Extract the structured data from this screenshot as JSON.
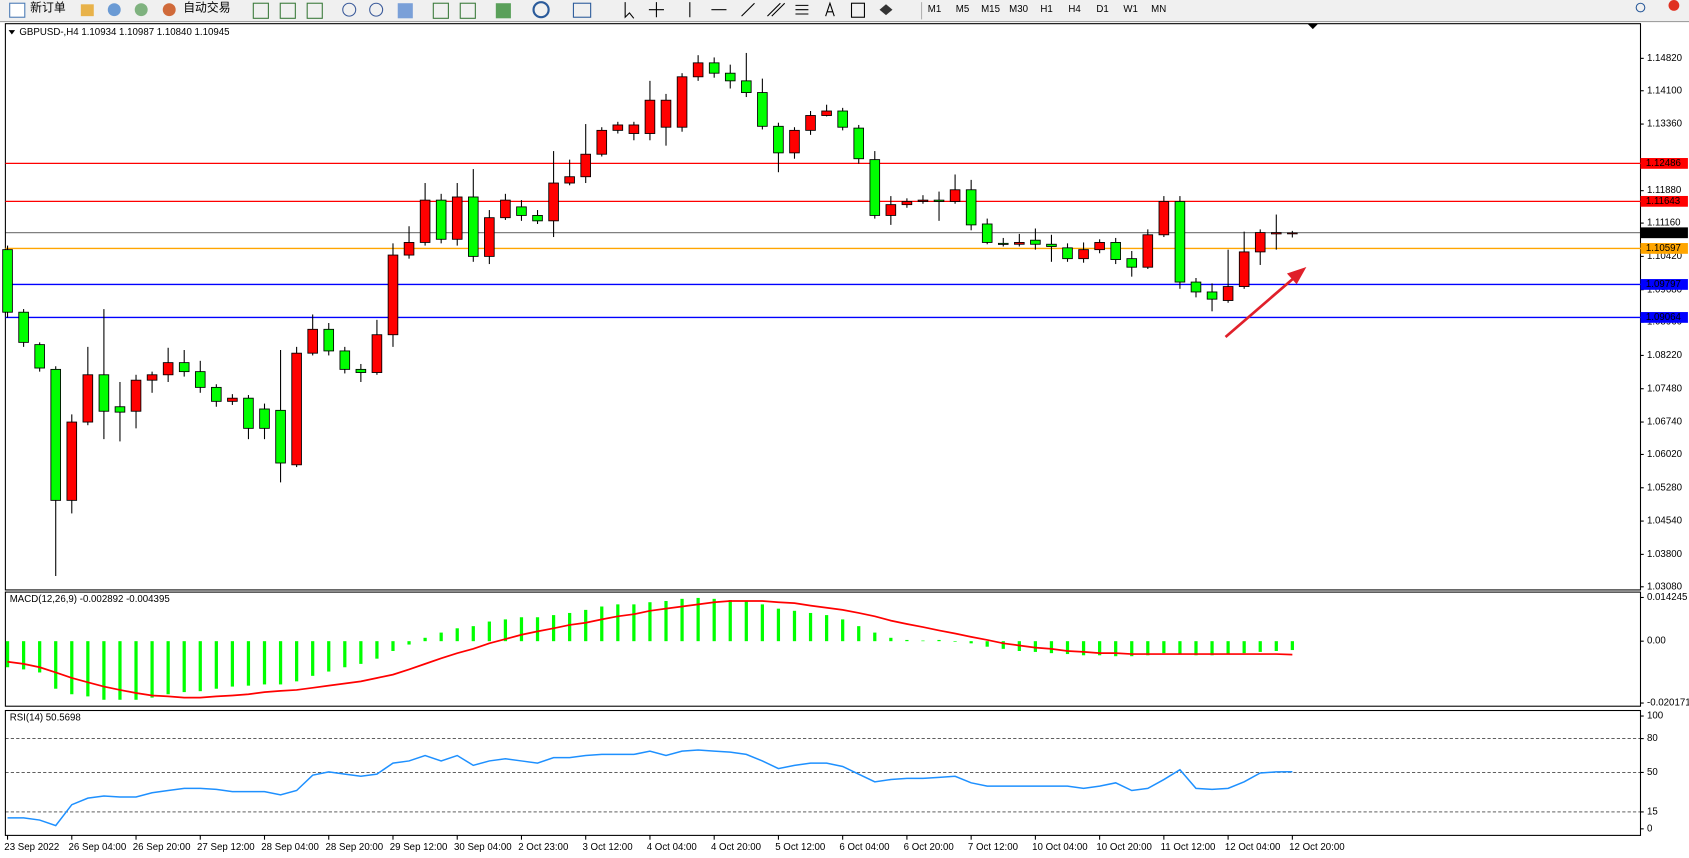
{
  "toolbar": {
    "new_order": "新订单",
    "auto_trading": "自动交易",
    "timeframes": [
      "M1",
      "M5",
      "M15",
      "M30",
      "H1",
      "H4",
      "D1",
      "W1",
      "MN"
    ]
  },
  "chart_data": [
    {
      "type": "candlestick",
      "title": "GBPUSD-,H4  1.10934 1.10987 1.10840 1.10945",
      "x": [
        "23 Sep 2022",
        null,
        null,
        null,
        "26 Sep 04:00",
        null,
        null,
        null,
        "26 Sep 20:00",
        null,
        null,
        null,
        "27 Sep 12:00",
        null,
        null,
        null,
        "28 Sep 04:00",
        null,
        null,
        null,
        "28 Sep 20:00",
        null,
        null,
        null,
        "29 Sep 12:00",
        null,
        null,
        null,
        "30 Sep 04:00",
        null,
        null,
        null,
        "2 Oct 23:00",
        null,
        null,
        null,
        "3 Oct 12:00",
        null,
        null,
        null,
        "4 Oct 04:00",
        null,
        null,
        null,
        "4 Oct 20:00",
        null,
        null,
        null,
        "5 Oct 12:00",
        null,
        null,
        null,
        "6 Oct 04:00",
        null,
        null,
        null,
        "6 Oct 20:00",
        null,
        null,
        null,
        "7 Oct 12:00",
        null,
        null,
        null,
        "10 Oct 04:00",
        null,
        null,
        null,
        "10 Oct 20:00",
        null,
        null,
        null,
        "11 Oct 12:00",
        null,
        null,
        null,
        "12 Oct 04:00",
        null,
        null,
        null,
        "12 Oct 20:00"
      ],
      "open": [
        1.1057,
        1.0918,
        1.0846,
        1.0791,
        1.05,
        1.0674,
        1.0779,
        1.0708,
        1.0698,
        1.0767,
        1.0779,
        1.0806,
        1.0786,
        1.0751,
        1.072,
        1.0727,
        1.0703,
        1.07,
        1.0579,
        1.0827,
        1.088,
        1.0832,
        1.0791,
        1.0784,
        1.0868,
        1.1045,
        1.1073,
        1.1167,
        1.108,
        1.1174,
        1.1042,
        1.1128,
        1.1152,
        1.1133,
        1.1121,
        1.1205,
        1.1219,
        1.1269,
        1.1322,
        1.1315,
        1.1315,
        1.1329,
        1.1329,
        1.1441,
        1.1472,
        1.1449,
        1.1432,
        1.1406,
        1.1331,
        1.1272,
        1.1322,
        1.1355,
        1.1365,
        1.1327,
        1.1257,
        1.1133,
        1.1157,
        1.1164,
        1.1167,
        1.1164,
        1.119,
        1.1114,
        1.1071,
        1.1069,
        1.1078,
        1.1069,
        1.1061,
        1.1037,
        1.1057,
        1.1073,
        1.1037,
        1.1018,
        1.109,
        1.1164,
        1.0985,
        1.0963,
        1.0944,
        1.0975,
        1.1052,
        1.1092,
        1.10934
      ],
      "high": [
        1.1066,
        1.0925,
        1.0851,
        1.0798,
        1.0691,
        1.0841,
        1.0925,
        1.0763,
        1.0779,
        1.0786,
        1.0839,
        1.0834,
        1.081,
        1.0758,
        1.0736,
        1.0734,
        1.0715,
        1.0834,
        1.0841,
        1.0913,
        1.0894,
        1.0841,
        1.0803,
        1.0901,
        1.1071,
        1.1109,
        1.1205,
        1.1181,
        1.1205,
        1.1236,
        1.1145,
        1.1181,
        1.1167,
        1.1145,
        1.1276,
        1.1257,
        1.1336,
        1.1329,
        1.1341,
        1.1341,
        1.1432,
        1.1403,
        1.1449,
        1.1489,
        1.1484,
        1.1468,
        1.1494,
        1.1437,
        1.1339,
        1.1329,
        1.1365,
        1.1379,
        1.1372,
        1.1334,
        1.1276,
        1.1176,
        1.1171,
        1.1178,
        1.1186,
        1.1224,
        1.1212,
        1.1126,
        1.1083,
        1.1092,
        1.1104,
        1.109,
        1.1071,
        1.1073,
        1.108,
        1.1083,
        1.1054,
        1.1102,
        1.1176,
        1.1176,
        1.0994,
        1.0982,
        1.1057,
        1.1097,
        1.1102,
        1.1135,
        1.10987
      ],
      "low": [
        1.0906,
        1.0841,
        1.0786,
        1.0332,
        1.0471,
        1.0667,
        1.0636,
        1.0631,
        1.066,
        1.0739,
        1.0763,
        1.0775,
        1.0739,
        1.0708,
        1.0712,
        1.0636,
        1.0636,
        1.054,
        1.0574,
        1.0822,
        1.0822,
        1.0782,
        1.0763,
        1.0779,
        1.0841,
        1.1037,
        1.1066,
        1.1071,
        1.1066,
        1.103,
        1.1025,
        1.1123,
        1.1121,
        1.1114,
        1.1085,
        1.12,
        1.1205,
        1.1264,
        1.1315,
        1.13,
        1.13,
        1.1288,
        1.1319,
        1.1432,
        1.1439,
        1.1415,
        1.1396,
        1.1324,
        1.1229,
        1.1259,
        1.1312,
        1.1353,
        1.1322,
        1.1248,
        1.1126,
        1.1112,
        1.115,
        1.1159,
        1.1121,
        1.1159,
        1.11,
        1.1069,
        1.1064,
        1.1064,
        1.1057,
        1.103,
        1.103,
        1.1028,
        1.1049,
        1.1025,
        1.0997,
        1.1014,
        1.1085,
        1.097,
        1.0951,
        1.092,
        1.0939,
        1.097,
        1.1023,
        1.1057,
        1.1084
      ],
      "close": [
        1.0918,
        1.0851,
        1.0794,
        1.05,
        1.0674,
        1.0779,
        1.0698,
        1.0696,
        1.0767,
        1.0779,
        1.0806,
        1.0786,
        1.0751,
        1.072,
        1.0727,
        1.066,
        1.066,
        1.0583,
        1.0827,
        1.088,
        1.0832,
        1.0791,
        1.0784,
        1.0868,
        1.1045,
        1.1073,
        1.1167,
        1.108,
        1.1174,
        1.1042,
        1.1128,
        1.1167,
        1.1133,
        1.1121,
        1.1205,
        1.1219,
        1.1269,
        1.1322,
        1.1334,
        1.1334,
        1.1389,
        1.1389,
        1.1441,
        1.1472,
        1.1449,
        1.1432,
        1.1406,
        1.1331,
        1.1272,
        1.1322,
        1.1355,
        1.1365,
        1.1329,
        1.1259,
        1.1133,
        1.1157,
        1.1164,
        1.1167,
        1.1164,
        1.119,
        1.1112,
        1.1073,
        1.1069,
        1.1073,
        1.1069,
        1.1064,
        1.1037,
        1.1057,
        1.1073,
        1.1035,
        1.1018,
        1.109,
        1.1164,
        1.0985,
        1.0963,
        1.0947,
        1.0975,
        1.1052,
        1.1095,
        1.1095,
        1.10945
      ],
      "up_color": "#ff0000",
      "down_color": "#00ff00",
      "last_price_color": "#000000",
      "ylim": [
        1.0301,
        1.1559
      ],
      "yticks": [
        {
          "value": 1.1482,
          "label": "1.14820"
        },
        {
          "value": 1.141,
          "label": "1.14100"
        },
        {
          "value": 1.1336,
          "label": "1.13360"
        },
        {
          "value": 1.1188,
          "label": "1.11880"
        },
        {
          "value": 1.1116,
          "label": "1.11160"
        },
        {
          "value": 1.1042,
          "label": "1.10420"
        },
        {
          "value": 1.0968,
          "label": "1.09680"
        },
        {
          "value": 1.0896,
          "label": "1.08960"
        },
        {
          "value": 1.0822,
          "label": "1.08220"
        },
        {
          "value": 1.0748,
          "label": "1.07480"
        },
        {
          "value": 1.0674,
          "label": "1.06740"
        },
        {
          "value": 1.0602,
          "label": "1.06020"
        },
        {
          "value": 1.0528,
          "label": "1.05280"
        },
        {
          "value": 1.0454,
          "label": "1.04540"
        },
        {
          "value": 1.038,
          "label": "1.03800"
        },
        {
          "value": 1.0308,
          "label": "1.03080"
        }
      ],
      "levels": [
        {
          "value": 1.12486,
          "color": "#ff0000"
        },
        {
          "value": 1.11643,
          "color": "#ff0000"
        },
        {
          "value": 1.10597,
          "color": "#ffa500"
        },
        {
          "value": 1.09797,
          "color": "#0000ff"
        },
        {
          "value": 1.09064,
          "color": "#0000ff"
        }
      ]
    },
    {
      "type": "macd",
      "title": "MACD(12,26,9) -0.002892 -0.004395",
      "series": [
        {
          "type": "bar",
          "color": "#00ff00",
          "values": [
            -0.0085,
            -0.0092,
            -0.0102,
            -0.0155,
            -0.0173,
            -0.018,
            -0.0191,
            -0.0191,
            -0.0191,
            -0.0184,
            -0.0173,
            -0.0166,
            -0.0163,
            -0.0155,
            -0.0148,
            -0.0145,
            -0.0141,
            -0.0141,
            -0.0131,
            -0.0113,
            -0.0099,
            -0.0085,
            -0.0074,
            -0.0057,
            -0.0032,
            -0.0011,
            0.0011,
            0.0028,
            0.0042,
            0.0049,
            0.0064,
            0.0071,
            0.0078,
            0.0078,
            0.0085,
            0.0092,
            0.0102,
            0.0113,
            0.012,
            0.012,
            0.0127,
            0.0131,
            0.0138,
            0.0141,
            0.0138,
            0.0134,
            0.0131,
            0.012,
            0.0106,
            0.0099,
            0.0092,
            0.0085,
            0.0071,
            0.0049,
            0.0028,
            0.0011,
            0.0004,
            0.0002,
            0.0004,
            -0.0002,
            -0.0007,
            -0.0018,
            -0.0025,
            -0.0032,
            -0.0035,
            -0.0039,
            -0.0042,
            -0.0046,
            -0.0046,
            -0.0049,
            -0.0049,
            -0.0046,
            -0.0039,
            -0.0042,
            -0.0046,
            -0.0046,
            -0.0042,
            -0.0039,
            -0.0035,
            -0.0032,
            -0.002892
          ]
        },
        {
          "type": "line",
          "color": "#ff0000",
          "values": [
            -0.0067,
            -0.0074,
            -0.0085,
            -0.0102,
            -0.012,
            -0.0134,
            -0.0148,
            -0.0159,
            -0.0169,
            -0.0177,
            -0.018,
            -0.0184,
            -0.0184,
            -0.018,
            -0.0177,
            -0.0173,
            -0.0166,
            -0.0162,
            -0.0159,
            -0.0152,
            -0.0145,
            -0.0138,
            -0.0131,
            -0.012,
            -0.0109,
            -0.0092,
            -0.0074,
            -0.0056,
            -0.0039,
            -0.0025,
            -0.0007,
            0.0007,
            0.0021,
            0.0032,
            0.0042,
            0.0053,
            0.006,
            0.0071,
            0.0081,
            0.0088,
            0.0099,
            0.0106,
            0.0113,
            0.012,
            0.0127,
            0.0131,
            0.0131,
            0.0131,
            0.0127,
            0.0124,
            0.0116,
            0.0109,
            0.0102,
            0.0092,
            0.0081,
            0.0067,
            0.0056,
            0.0046,
            0.0035,
            0.0025,
            0.0014,
            0.0004,
            -0.0007,
            -0.0014,
            -0.0021,
            -0.0025,
            -0.0032,
            -0.0035,
            -0.0039,
            -0.0039,
            -0.0042,
            -0.0042,
            -0.0042,
            -0.0042,
            -0.0042,
            -0.0042,
            -0.0042,
            -0.0042,
            -0.0042,
            -0.0042,
            -0.004395
          ]
        }
      ],
      "ylim": [
        -0.0212,
        0.016
      ],
      "yticks": [
        0.014245,
        {
          "value": 0,
          "label": "0.00"
        },
        -0.020171
      ]
    },
    {
      "type": "rsi",
      "title": "RSI(14) 50.5698",
      "color": "#1e90ff",
      "values": [
        9.7,
        9.7,
        7.8,
        2.9,
        21.4,
        27.2,
        29.1,
        28.2,
        28.2,
        32.0,
        34.0,
        35.9,
        35.9,
        35.0,
        33.0,
        33.0,
        33.0,
        30.1,
        34.0,
        47.6,
        50.5,
        48.5,
        46.6,
        48.5,
        58.3,
        60.2,
        65.0,
        60.2,
        65.0,
        56.3,
        60.2,
        62.1,
        60.2,
        58.3,
        63.1,
        63.1,
        65.0,
        66.0,
        66.0,
        66.0,
        68.9,
        65.0,
        68.9,
        69.9,
        68.9,
        68.0,
        66.0,
        60.2,
        53.4,
        56.3,
        58.3,
        58.3,
        55.3,
        48.5,
        41.7,
        43.7,
        44.7,
        44.7,
        45.6,
        46.6,
        40.8,
        37.9,
        37.9,
        37.9,
        37.9,
        37.9,
        37.9,
        35.9,
        37.9,
        40.8,
        34.0,
        35.9,
        43.7,
        52.4,
        35.9,
        35.0,
        35.9,
        41.7,
        49.5,
        50.5,
        50.5698
      ],
      "ylim": [
        -5.8,
        104.9
      ],
      "yticks": [
        100,
        80,
        50,
        15,
        0
      ],
      "levels": [
        80,
        50,
        15
      ]
    }
  ]
}
